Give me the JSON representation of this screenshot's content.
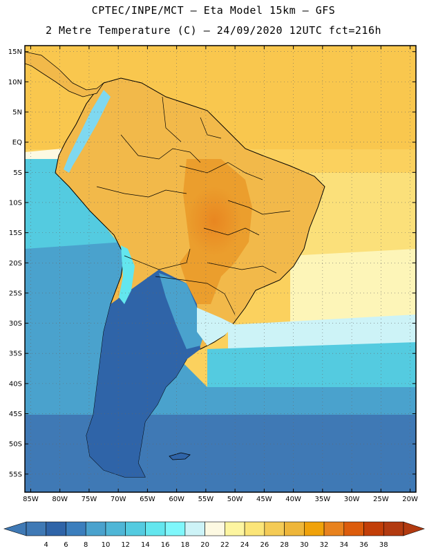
{
  "header": {
    "title_line1": "CPTEC/INPE/MCT –  Eta Model 15km – GFS",
    "title_line2": "2 Metre Temperature (C) – 24/09/2020 12UTC fct=216h"
  },
  "map": {
    "lon_range": [
      -86,
      -19
    ],
    "lat_range": [
      -58,
      16
    ],
    "lat_labels": [
      {
        "text": "15N",
        "lat": 15
      },
      {
        "text": "10N",
        "lat": 10
      },
      {
        "text": "5N",
        "lat": 5
      },
      {
        "text": "EQ",
        "lat": 0
      },
      {
        "text": "5S",
        "lat": -5
      },
      {
        "text": "10S",
        "lat": -10
      },
      {
        "text": "15S",
        "lat": -15
      },
      {
        "text": "20S",
        "lat": -20
      },
      {
        "text": "25S",
        "lat": -25
      },
      {
        "text": "30S",
        "lat": -30
      },
      {
        "text": "35S",
        "lat": -35
      },
      {
        "text": "40S",
        "lat": -40
      },
      {
        "text": "45S",
        "lat": -45
      },
      {
        "text": "50S",
        "lat": -50
      },
      {
        "text": "55S",
        "lat": -55
      }
    ],
    "lon_labels": [
      {
        "text": "85W",
        "lon": -85
      },
      {
        "text": "80W",
        "lon": -80
      },
      {
        "text": "75W",
        "lon": -75
      },
      {
        "text": "70W",
        "lon": -70
      },
      {
        "text": "65W",
        "lon": -65
      },
      {
        "text": "60W",
        "lon": -60
      },
      {
        "text": "55W",
        "lon": -55
      },
      {
        "text": "50W",
        "lon": -50
      },
      {
        "text": "45W",
        "lon": -45
      },
      {
        "text": "40W",
        "lon": -40
      },
      {
        "text": "35W",
        "lon": -35
      },
      {
        "text": "30W",
        "lon": -30
      },
      {
        "text": "25W",
        "lon": -25
      },
      {
        "text": "20W",
        "lon": -20
      }
    ],
    "grid": true
  },
  "colorbar": {
    "labels": [
      "4",
      "6",
      "8",
      "10",
      "12",
      "14",
      "16",
      "18",
      "20",
      "22",
      "24",
      "26",
      "28",
      "30",
      "32",
      "34",
      "36",
      "38"
    ],
    "colors": [
      "#3f79b5",
      "#2f64a8",
      "#3b7ebd",
      "#4aa2cd",
      "#4fb6d6",
      "#54cbe0",
      "#63e6ee",
      "#7ff7fb",
      "#cdf3f7",
      "#fdf9e2",
      "#fdf5a0",
      "#fbe578",
      "#f4cb56",
      "#eeb63a",
      "#f0a20a",
      "#e8821e",
      "#dc5c0c",
      "#c23e08",
      "#b23a10"
    ],
    "low_color": "#3f79b5",
    "high_color": "#b23a10"
  }
}
